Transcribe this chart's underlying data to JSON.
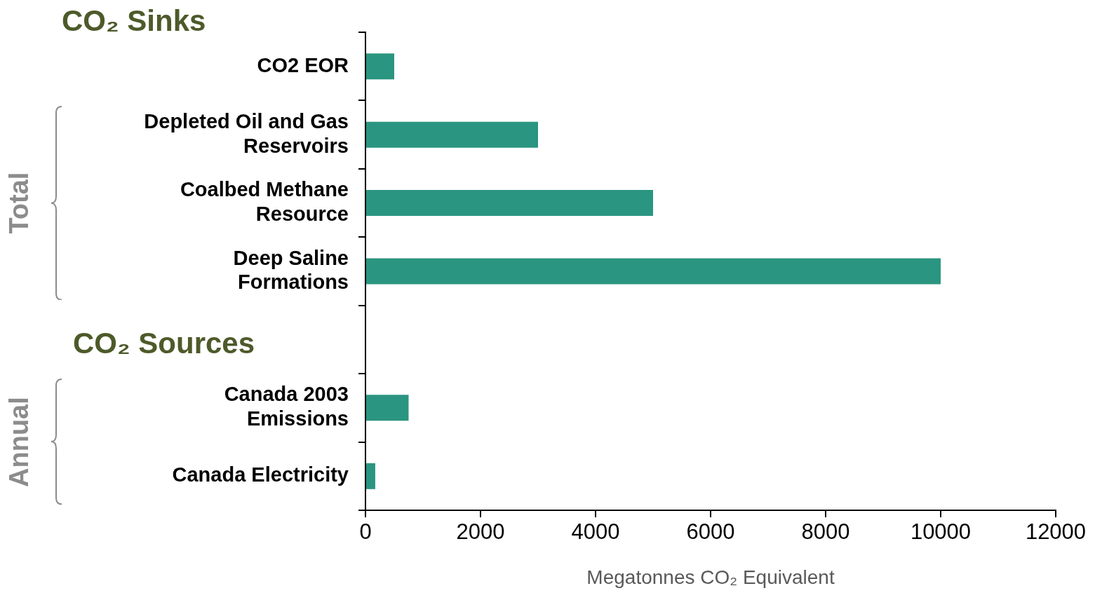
{
  "chart_data": {
    "type": "bar",
    "orientation": "horizontal",
    "title": "CO₂ Sinks",
    "categories": [
      "CO2 EOR",
      "Depleted Oil and Gas Reservoirs",
      "Coalbed Methane Resource",
      "Deep Saline Formations",
      null,
      "Canada 2003 Emissions",
      "Canada Electricity"
    ],
    "values": [
      500,
      3000,
      5000,
      10000,
      null,
      750,
      170
    ],
    "color": "#2a9580",
    "xlim": [
      0,
      12000
    ],
    "xticks": [
      0,
      2000,
      4000,
      6000,
      8000,
      10000,
      12000
    ],
    "xlabel": "Megatonnes CO₂ Equivalent",
    "annotations": [
      "CO₂ Sources",
      "Total",
      "Annual"
    ],
    "grid": false,
    "legend": false
  }
}
